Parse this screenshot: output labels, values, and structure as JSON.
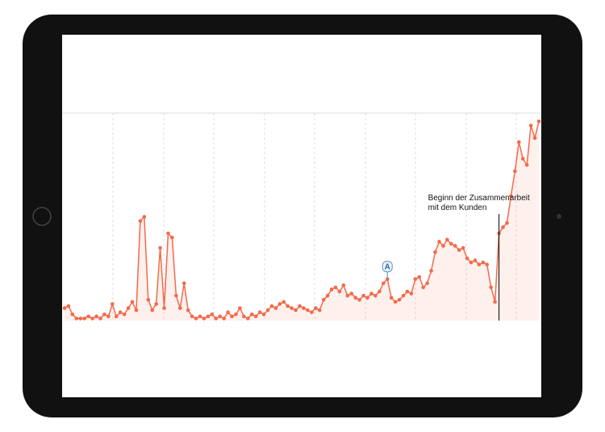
{
  "chart_data": {
    "type": "line",
    "x": [
      0,
      1,
      2,
      3,
      4,
      5,
      6,
      7,
      8,
      9,
      10,
      11,
      12,
      13,
      14,
      15,
      16,
      17,
      18,
      19,
      20,
      21,
      22,
      23,
      24,
      25,
      26,
      27,
      28,
      29,
      30,
      31,
      32,
      33,
      34,
      35,
      36,
      37,
      38,
      39,
      40,
      41,
      42,
      43,
      44,
      45,
      46,
      47,
      48,
      49,
      50,
      51,
      52,
      53,
      54,
      55,
      56,
      57,
      58,
      59,
      60,
      61,
      62,
      63,
      64,
      65,
      66,
      67,
      68,
      69,
      70,
      71,
      72,
      73,
      74,
      75,
      76,
      77,
      78,
      79,
      80,
      81,
      82,
      83,
      84,
      85,
      86,
      87,
      88,
      89,
      90,
      91,
      92,
      93,
      94,
      95,
      96,
      97,
      98,
      99,
      100,
      101,
      102,
      103,
      104,
      105,
      106,
      107,
      108,
      109,
      110,
      111,
      112,
      113,
      114,
      115,
      116,
      117,
      118,
      119
    ],
    "series": [
      {
        "color": "#f26a4b",
        "values": [
          6,
          7,
          3,
          1,
          1,
          1,
          2,
          1,
          2,
          1,
          3,
          2,
          8,
          2,
          4,
          3,
          6,
          9,
          5,
          48,
          50,
          10,
          5,
          8,
          35,
          6,
          42,
          40,
          12,
          6,
          18,
          5,
          2,
          1,
          2,
          1,
          2,
          3,
          1,
          2,
          1,
          4,
          2,
          3,
          6,
          2,
          1,
          3,
          2,
          4,
          3,
          5,
          7,
          6,
          8,
          9,
          7,
          6,
          5,
          7,
          6,
          5,
          4,
          6,
          5,
          10,
          12,
          15,
          16,
          14,
          17,
          12,
          13,
          11,
          10,
          12,
          11,
          13,
          12,
          14,
          18,
          20,
          11,
          9,
          10,
          12,
          14,
          13,
          20,
          21,
          16,
          18,
          24,
          33,
          38,
          36,
          39,
          37,
          36,
          34,
          35,
          30,
          28,
          29,
          27,
          28,
          27,
          16,
          9,
          42,
          45,
          47,
          60,
          72,
          86,
          78,
          75,
          94,
          88,
          96
        ]
      }
    ],
    "xlim": [
      0,
      119
    ],
    "ylim": [
      0,
      100
    ],
    "annotations": [
      {
        "x": 81,
        "label": "A"
      },
      {
        "x": 109,
        "label": "Beginn der Zusammenarbeit mit dem Kunden"
      }
    ]
  }
}
